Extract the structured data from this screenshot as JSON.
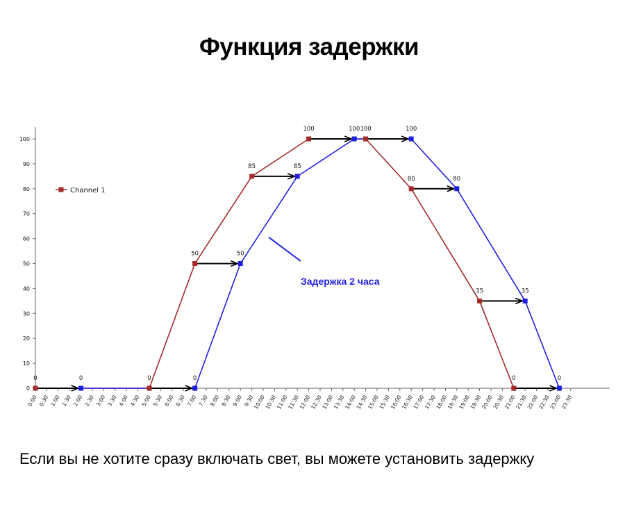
{
  "title": "Функция задержки",
  "caption": "Если вы не хотите сразу включать свет, вы можете установить задержку",
  "chart_data": {
    "type": "line",
    "x_ticks": [
      "0:00",
      "0:30",
      "1:00",
      "1:30",
      "2:00",
      "2:30",
      "3:00",
      "3:30",
      "4:00",
      "4:30",
      "5:00",
      "5:30",
      "6:00",
      "6:30",
      "7:00",
      "7:30",
      "8:00",
      "8:30",
      "9:00",
      "9:30",
      "10:00",
      "10:30",
      "11:00",
      "11:30",
      "12:00",
      "12:30",
      "13:00",
      "13:30",
      "14:00",
      "14:30",
      "15:00",
      "15:30",
      "16:00",
      "16:30",
      "17:00",
      "17:30",
      "18:00",
      "18:30",
      "19:00",
      "19:30",
      "20:00",
      "20:30",
      "21:00",
      "21:30",
      "22:00",
      "22:30",
      "23:00",
      "23:30"
    ],
    "y_ticks": [
      "0",
      "10",
      "20",
      "30",
      "40",
      "50",
      "60",
      "70",
      "80",
      "90",
      "100"
    ],
    "ylim": [
      0,
      100
    ],
    "series": [
      {
        "name": "Channel 1",
        "color": "#a52a2a",
        "points": [
          [
            "0:00",
            0
          ],
          [
            "5:00",
            0
          ],
          [
            "7:00",
            50
          ],
          [
            "9:30",
            85
          ],
          [
            "12:00",
            100
          ],
          [
            "14:30",
            100
          ],
          [
            "16:30",
            80
          ],
          [
            "19:30",
            35
          ],
          [
            "21:00",
            0
          ]
        ],
        "labels": [
          "0",
          "0",
          "50",
          "85",
          "100",
          "100",
          "80",
          "35",
          "0"
        ]
      },
      {
        "color": "#1f1fe0",
        "points": [
          [
            "2:00",
            0
          ],
          [
            "7:00",
            0
          ],
          [
            "9:00",
            50
          ],
          [
            "11:30",
            85
          ],
          [
            "14:00",
            100
          ],
          [
            "16:30",
            100
          ],
          [
            "18:30",
            80
          ],
          [
            "21:30",
            35
          ],
          [
            "23:00",
            0
          ]
        ],
        "labels": [
          "0",
          "0",
          "50",
          "85",
          "100",
          "100",
          "80",
          "35",
          "0"
        ]
      }
    ],
    "shift_arrows": [
      {
        "from": [
          "0:00",
          0
        ],
        "to": [
          "2:00",
          0
        ]
      },
      {
        "from": [
          "5:00",
          0
        ],
        "to": [
          "7:00",
          0
        ]
      },
      {
        "from": [
          "7:00",
          50
        ],
        "to": [
          "9:00",
          50
        ]
      },
      {
        "from": [
          "9:30",
          85
        ],
        "to": [
          "11:30",
          85
        ]
      },
      {
        "from": [
          "12:00",
          100
        ],
        "to": [
          "14:00",
          100
        ]
      },
      {
        "from": [
          "14:30",
          100
        ],
        "to": [
          "16:30",
          100
        ]
      },
      {
        "from": [
          "16:30",
          80
        ],
        "to": [
          "18:30",
          80
        ]
      },
      {
        "from": [
          "19:30",
          35
        ],
        "to": [
          "21:30",
          35
        ]
      },
      {
        "from": [
          "21:00",
          0
        ],
        "to": [
          "23:00",
          0
        ]
      }
    ],
    "annotation": {
      "text": "Задержка 2 часа",
      "color": "#1f1fe0",
      "pointer_target": [
        "10:00",
        60
      ]
    },
    "legend": {
      "entries": [
        "Channel 1"
      ],
      "placement": "top-left"
    },
    "grid": false
  }
}
